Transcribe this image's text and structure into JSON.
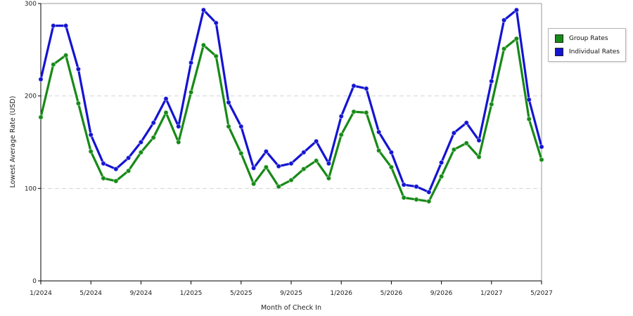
{
  "chart_data": {
    "type": "line",
    "xlabel": "Month of Check In",
    "ylabel": "Lowest Average Rate (USD)",
    "ylim": [
      0,
      300
    ],
    "y_ticks": [
      "0",
      "100",
      "200",
      "300"
    ],
    "y_tick_values": [
      0,
      100,
      200,
      300
    ],
    "x_tick_labels": [
      "1/2024",
      "5/2024",
      "9/2024",
      "1/2025",
      "5/2025",
      "9/2025",
      "1/2026",
      "5/2026",
      "9/2026",
      "1/2027",
      "5/2027"
    ],
    "x_tick_values": [
      "2024-01",
      "2024-05",
      "2024-09",
      "2025-01",
      "2025-05",
      "2025-09",
      "2026-01",
      "2026-05",
      "2026-09",
      "2027-01",
      "2027-05"
    ],
    "grid": "horizontal dashed",
    "legend_position": "right",
    "x": [
      "2024-01",
      "2024-02",
      "2024-03",
      "2024-04",
      "2024-05",
      "2024-06",
      "2024-07",
      "2024-08",
      "2024-09",
      "2024-10",
      "2024-11",
      "2024-12",
      "2025-01",
      "2025-02",
      "2025-03",
      "2025-04",
      "2025-05",
      "2025-06",
      "2025-07",
      "2025-08",
      "2025-09",
      "2025-10",
      "2025-11",
      "2025-12",
      "2026-01",
      "2026-02",
      "2026-03",
      "2026-04",
      "2026-05",
      "2026-06",
      "2026-07",
      "2026-08",
      "2026-09",
      "2026-10",
      "2026-11",
      "2026-12",
      "2027-01",
      "2027-02",
      "2027-03",
      "2027-04",
      "2027-05"
    ],
    "series": [
      {
        "name": "Group Rates",
        "color": "#178a17",
        "values": [
          177,
          234,
          244,
          192,
          140,
          111,
          108,
          119,
          139,
          155,
          182,
          150,
          204,
          255,
          243,
          167,
          138,
          105,
          123,
          102,
          109,
          121,
          130,
          111,
          158,
          183,
          182,
          141,
          123,
          90,
          88,
          86,
          113,
          142,
          149,
          134,
          191,
          251,
          262,
          175,
          131
        ]
      },
      {
        "name": "Individual Rates",
        "color": "#1414d2",
        "values": [
          218,
          276,
          276,
          229,
          158,
          127,
          121,
          133,
          150,
          171,
          197,
          167,
          236,
          293,
          279,
          193,
          167,
          122,
          140,
          124,
          127,
          139,
          151,
          127,
          178,
          211,
          208,
          161,
          139,
          104,
          102,
          96,
          128,
          160,
          171,
          152,
          216,
          282,
          293,
          196,
          145
        ]
      }
    ]
  }
}
